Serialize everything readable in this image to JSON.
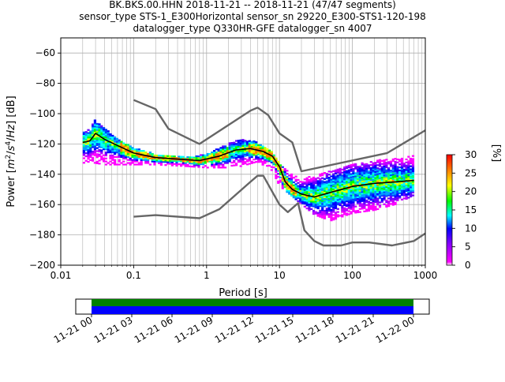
{
  "title_lines": [
    "BK.BKS.00.HHN   2018-11-21 -- 2018-11-21  (47/47 segments)",
    "sensor_type STS-1_E300Horizontal sensor_sn 29220_E300-STS1-120-198",
    "datalogger_type Q330HR-GFE datalogger_sn 4007"
  ],
  "chart_data": [
    {
      "type": "heatmap",
      "xlabel": "Period [s]",
      "x_scale": "log",
      "xlim": [
        0.01,
        1000
      ],
      "x_ticks": [
        {
          "value": 0.01,
          "label": "0.01"
        },
        {
          "value": 0.1,
          "label": "0.1"
        },
        {
          "value": 1,
          "label": "1"
        },
        {
          "value": 10,
          "label": "10"
        },
        {
          "value": 100,
          "label": "100"
        },
        {
          "value": 1000,
          "label": "1000"
        }
      ],
      "ylim": [
        -200,
        -50
      ],
      "y_ticks": [
        {
          "value": -60,
          "label": "−60"
        },
        {
          "value": -80,
          "label": "−80"
        },
        {
          "value": -100,
          "label": "−100"
        },
        {
          "value": -120,
          "label": "−120"
        },
        {
          "value": -140,
          "label": "−140"
        },
        {
          "value": -160,
          "label": "−160"
        },
        {
          "value": -180,
          "label": "−180"
        },
        {
          "value": -200,
          "label": "−200"
        }
      ],
      "grid": true,
      "colorbar": {
        "label": "[%]",
        "range": [
          0,
          30
        ],
        "ticks": [
          {
            "value": 0,
            "label": "0"
          },
          {
            "value": 5,
            "label": "5"
          },
          {
            "value": 10,
            "label": "10"
          },
          {
            "value": 15,
            "label": "15"
          },
          {
            "value": 20,
            "label": "20"
          },
          {
            "value": 25,
            "label": "25"
          },
          {
            "value": 30,
            "label": "30"
          }
        ],
        "colormap": [
          "#ffffff",
          "#ff00ff",
          "#0000ff",
          "#00ffff",
          "#00ff00",
          "#ffff00",
          "#ff8000",
          "#ff0000"
        ]
      },
      "density_band": [
        {
          "x": 0.02,
          "lo": -133,
          "hi": -112
        },
        {
          "x": 0.025,
          "lo": -132,
          "hi": -109
        },
        {
          "x": 0.03,
          "lo": -133,
          "hi": -104
        },
        {
          "x": 0.04,
          "lo": -134,
          "hi": -110
        },
        {
          "x": 0.06,
          "lo": -134,
          "hi": -117
        },
        {
          "x": 0.1,
          "lo": -134,
          "hi": -123
        },
        {
          "x": 0.2,
          "lo": -134,
          "hi": -127
        },
        {
          "x": 0.5,
          "lo": -135,
          "hi": -129
        },
        {
          "x": 1,
          "lo": -136,
          "hi": -127
        },
        {
          "x": 2,
          "lo": -136,
          "hi": -120
        },
        {
          "x": 3,
          "lo": -135,
          "hi": -117
        },
        {
          "x": 5,
          "lo": -132,
          "hi": -119
        },
        {
          "x": 8,
          "lo": -138,
          "hi": -126
        },
        {
          "x": 10,
          "lo": -148,
          "hi": -133
        },
        {
          "x": 15,
          "lo": -155,
          "hi": -140
        },
        {
          "x": 20,
          "lo": -160,
          "hi": -143
        },
        {
          "x": 30,
          "lo": -167,
          "hi": -141
        },
        {
          "x": 50,
          "lo": -171,
          "hi": -138
        },
        {
          "x": 100,
          "lo": -166,
          "hi": -133
        },
        {
          "x": 200,
          "lo": -164,
          "hi": -131
        },
        {
          "x": 400,
          "lo": -160,
          "hi": -130
        },
        {
          "x": 700,
          "lo": -154,
          "hi": -128
        }
      ],
      "series": [
        {
          "color": "#000000",
          "points": [
            [
              0.02,
              -119
            ],
            [
              0.025,
              -118
            ],
            [
              0.03,
              -113
            ],
            [
              0.04,
              -117
            ],
            [
              0.06,
              -121
            ],
            [
              0.1,
              -126
            ],
            [
              0.2,
              -129
            ],
            [
              0.4,
              -130
            ],
            [
              0.8,
              -131
            ],
            [
              1.5,
              -128
            ],
            [
              2.5,
              -124
            ],
            [
              4,
              -123
            ],
            [
              6,
              -125
            ],
            [
              8,
              -128
            ],
            [
              10,
              -135
            ],
            [
              12,
              -145
            ],
            [
              15,
              -150
            ],
            [
              20,
              -153
            ],
            [
              30,
              -155
            ],
            [
              50,
              -152
            ],
            [
              100,
              -148
            ],
            [
              200,
              -146
            ],
            [
              400,
              -145
            ],
            [
              700,
              -144
            ]
          ]
        },
        {
          "color": "#666666",
          "points": [
            [
              0.1,
              -91
            ],
            [
              0.2,
              -97
            ],
            [
              0.3,
              -110
            ],
            [
              0.8,
              -120
            ],
            [
              4,
              -98
            ],
            [
              5,
              -96
            ],
            [
              7,
              -101
            ],
            [
              10,
              -113
            ],
            [
              15,
              -119
            ],
            [
              20,
              -138
            ],
            [
              300,
              -126
            ],
            [
              1000,
              -111
            ]
          ]
        },
        {
          "color": "#666666",
          "points": [
            [
              0.1,
              -168
            ],
            [
              0.2,
              -167
            ],
            [
              0.8,
              -169
            ],
            [
              1.5,
              -163
            ],
            [
              4,
              -145
            ],
            [
              5,
              -141
            ],
            [
              6,
              -141
            ],
            [
              10,
              -160
            ],
            [
              13,
              -165
            ],
            [
              18,
              -159
            ],
            [
              22,
              -177
            ],
            [
              30,
              -184
            ],
            [
              40,
              -187
            ],
            [
              70,
              -187
            ],
            [
              100,
              -185
            ],
            [
              170,
              -185
            ],
            [
              350,
              -187
            ],
            [
              700,
              -184
            ],
            [
              1000,
              -179
            ]
          ]
        }
      ]
    },
    {
      "type": "timeline",
      "start": "2018-11-21T00:00",
      "end": "2018-11-22T00:00",
      "ticks": [
        {
          "value": 0,
          "label": "11-21 00"
        },
        {
          "value": 3,
          "label": "11-21 03"
        },
        {
          "value": 6,
          "label": "11-21 06"
        },
        {
          "value": 9,
          "label": "11-21 09"
        },
        {
          "value": 12,
          "label": "11-21 12"
        },
        {
          "value": 15,
          "label": "11-21 15"
        },
        {
          "value": 18,
          "label": "11-21 18"
        },
        {
          "value": 21,
          "label": "11-21 21"
        },
        {
          "value": 24,
          "label": "11-22 00"
        }
      ],
      "data_coverage": {
        "from": 0,
        "to": 24,
        "color": "#008000"
      },
      "psd_coverage": {
        "from": 0,
        "to": 24,
        "color": "#0000ff"
      }
    }
  ]
}
